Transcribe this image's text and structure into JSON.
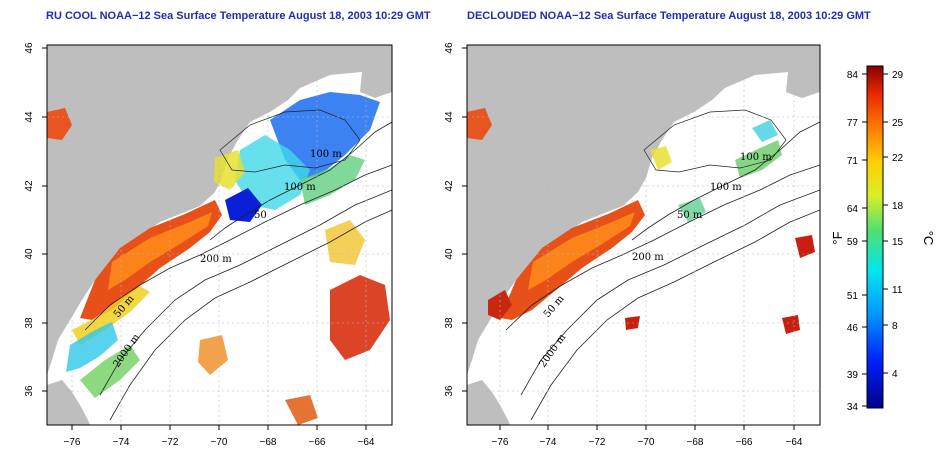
{
  "titles": {
    "left": "RU COOL NOAA−12 Sea Surface Temperature August 18, 2003 10:29 GMT",
    "right": "DECLOUDED NOAA−12 Sea Surface Temperature August 18, 2003 10:29 GMT"
  },
  "axes": {
    "x_ticks": [
      "−76",
      "−74",
      "−72",
      "−70",
      "−68",
      "−66",
      "−64"
    ],
    "y_ticks": [
      "46",
      "44",
      "42",
      "40",
      "38",
      "36"
    ]
  },
  "contour_labels": {
    "left": [
      "100 m",
      "100 m",
      "50",
      "200 m",
      "50 m",
      "2000 m"
    ],
    "right": [
      "100 m",
      "100 m",
      "50 m",
      "200 m",
      "50 m",
      "2000 m"
    ]
  },
  "colorbar": {
    "fahrenheit_ticks": [
      "84",
      "77",
      "71",
      "64",
      "59",
      "51",
      "46",
      "39",
      "34"
    ],
    "celsius_ticks": [
      "29",
      "25",
      "22",
      "18",
      "15",
      "11",
      "8",
      "4"
    ],
    "fahrenheit_label": "°F",
    "celsius_label": "°C"
  },
  "colors": {
    "land": "#bebebe",
    "ocean": "#ffffff",
    "title": "#1e2fb0"
  }
}
